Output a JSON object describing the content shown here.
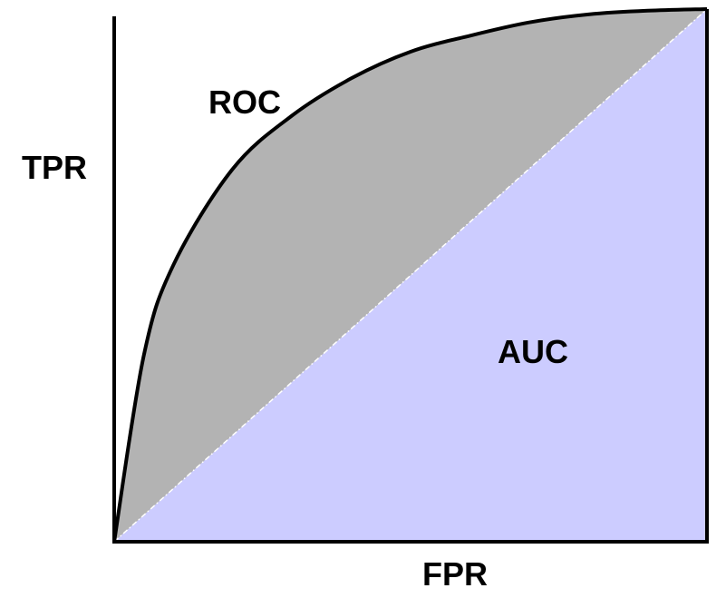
{
  "chart_data": {
    "type": "area",
    "title": "",
    "xlabel": "FPR",
    "ylabel": "TPR",
    "xlim": [
      0,
      1
    ],
    "ylim": [
      0,
      1
    ],
    "grid": false,
    "annotations": {
      "roc": "ROC",
      "auc": "AUC"
    },
    "series": [
      {
        "name": "ROC",
        "x": [
          0,
          0.05,
          0.1,
          0.2,
          0.3,
          0.4,
          0.5,
          0.6,
          0.7,
          0.8,
          0.9,
          1.0
        ],
        "y": [
          0,
          0.35,
          0.52,
          0.7,
          0.8,
          0.87,
          0.92,
          0.95,
          0.975,
          0.99,
          0.997,
          1.0
        ]
      },
      {
        "name": "",
        "x": [
          0,
          1
        ],
        "y": [
          0,
          1
        ]
      }
    ]
  },
  "colors": {
    "roc_fill": "#b3b3b3",
    "auc_fill": "#ccccff",
    "curve_stroke": "#000000",
    "diagonal_stroke": "#ffffff"
  }
}
